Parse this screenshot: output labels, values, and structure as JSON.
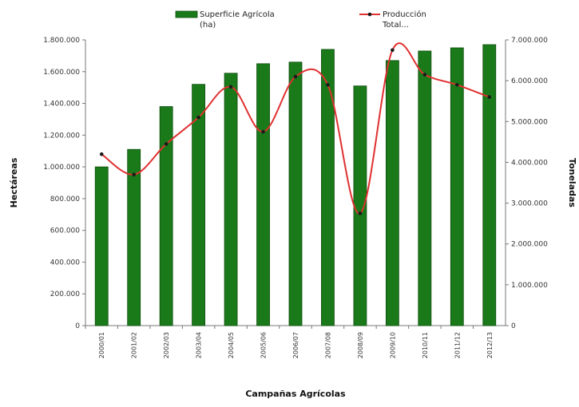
{
  "chart_data": {
    "type": "bar",
    "categories": [
      "2000/01",
      "2001/02",
      "2002/03",
      "2003/04",
      "2004/05",
      "2005/06",
      "2006/07",
      "2007/08",
      "2008/09",
      "2009/10",
      "2010/11",
      "2011/12",
      "2012/13"
    ],
    "series": [
      {
        "name": "Superficie Agrícola (ha)",
        "type": "bar",
        "axis": "left",
        "color": "#1a7a1a",
        "values": [
          1000000,
          1110000,
          1380000,
          1520000,
          1590000,
          1650000,
          1660000,
          1740000,
          1510000,
          1670000,
          1730000,
          1750000,
          1770000
        ]
      },
      {
        "name": "Producción Total...",
        "type": "line",
        "axis": "right",
        "color": "#e03030",
        "values": [
          4200000,
          3700000,
          4450000,
          5100000,
          5850000,
          4750000,
          6100000,
          5900000,
          2750000,
          6750000,
          6150000,
          5900000,
          5600000
        ]
      }
    ],
    "xlabel": "Campañas Agrícolas",
    "ylabel": "Hectáreas",
    "y2label": "Toneladas",
    "ylim": [
      0,
      1800000
    ],
    "y2lim": [
      0,
      7000000
    ],
    "yticks": [
      "0",
      "200.000",
      "400.000",
      "600.000",
      "800.000",
      "1.000.000",
      "1.200.000",
      "1.400.000",
      "1.600.000",
      "1.800.000"
    ],
    "y2ticks": [
      "0",
      "1.000.000",
      "2.000.000",
      "3.000.000",
      "4.000.000",
      "5.000.000",
      "6.000.000",
      "7.000.000"
    ],
    "legend": {
      "placement": "top",
      "entries": [
        {
          "line1": "Superficie Agrícola",
          "line2": "(ha)"
        },
        {
          "line1": "Producción",
          "line2": "Total..."
        }
      ]
    },
    "grid": false
  }
}
